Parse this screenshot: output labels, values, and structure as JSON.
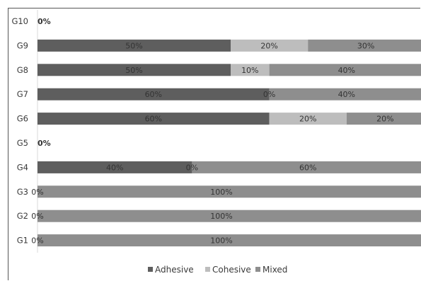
{
  "chart_data": {
    "type": "bar",
    "orientation": "horizontal",
    "stacked": true,
    "categories": [
      "G1",
      "G2",
      "G3",
      "G4",
      "G5",
      "G6",
      "G7",
      "G8",
      "G9",
      "G10"
    ],
    "series": [
      {
        "name": "Adhesive",
        "values": [
          0,
          0,
          0,
          40,
          0,
          60,
          60,
          50,
          50,
          0
        ],
        "color": "#5e5e5e"
      },
      {
        "name": "Cohesive",
        "values": [
          0,
          0,
          0,
          0,
          0,
          20,
          0,
          10,
          20,
          0
        ],
        "color": "#bdbdbd"
      },
      {
        "name": "Mixed",
        "values": [
          100,
          100,
          100,
          60,
          0,
          20,
          40,
          40,
          30,
          0
        ],
        "color": "#8e8e8e"
      }
    ],
    "data_labels": [
      [
        "0%",
        "100%"
      ],
      [
        "0%",
        "100%"
      ],
      [
        "0%",
        "100%"
      ],
      [
        "40%",
        "0%",
        "60%"
      ],
      [
        "0%"
      ],
      [
        "60%",
        "20%",
        "20%"
      ],
      [
        "60%",
        "0%",
        "40%"
      ],
      [
        "50%",
        "10%",
        "40%"
      ],
      [
        "50%",
        "20%",
        "30%"
      ],
      [
        "0%"
      ]
    ],
    "xlim": [
      0,
      100
    ],
    "legend_position": "bottom",
    "grid": false,
    "title": "",
    "xlabel": "",
    "ylabel": ""
  }
}
